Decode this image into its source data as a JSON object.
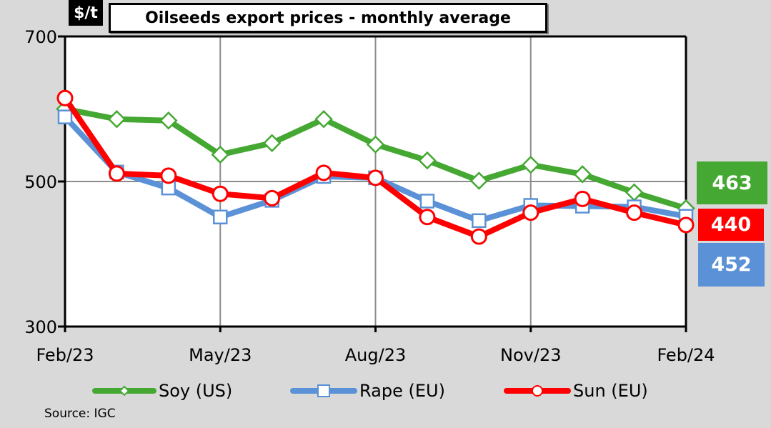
{
  "chart_data": {
    "type": "line",
    "title": "Oilseeds export prices - monthly average",
    "ylabel": "$/t",
    "xlabel": "",
    "ylim": [
      300,
      700
    ],
    "yticks": [
      300,
      500,
      700
    ],
    "ytick_labels": [
      "300",
      "500",
      "700"
    ],
    "x": [
      "Feb/23",
      "Mar/23",
      "Apr/23",
      "May/23",
      "Jun/23",
      "Jul/23",
      "Aug/23",
      "Sep/23",
      "Oct/23",
      "Nov/23",
      "Dec/23",
      "Jan/24",
      "Feb/24"
    ],
    "xtick_labels": [
      "Feb/23",
      "May/23",
      "Aug/23",
      "Nov/23",
      "Feb/24"
    ],
    "grid": true,
    "legend_position": "bottom",
    "series": [
      {
        "name": "Soy (US)",
        "color": "#44a832",
        "marker": "diamond",
        "values": [
          600,
          586,
          584,
          537,
          553,
          586,
          551,
          529,
          501,
          523,
          510,
          485,
          463
        ]
      },
      {
        "name": "Rape (EU)",
        "color": "#5b91d6",
        "marker": "square",
        "values": [
          589,
          513,
          491,
          451,
          474,
          507,
          505,
          473,
          446,
          467,
          466,
          465,
          452
        ]
      },
      {
        "name": "Sun (EU)",
        "color": "#ff0000",
        "marker": "circle",
        "values": [
          615,
          511,
          508,
          483,
          477,
          512,
          505,
          451,
          424,
          457,
          476,
          457,
          440
        ]
      }
    ],
    "latest_values": [
      {
        "series": "Soy (US)",
        "value": "463",
        "color": "#44a832"
      },
      {
        "series": "Sun (EU)",
        "value": "440",
        "color": "#ff0000"
      },
      {
        "series": "Rape (EU)",
        "value": "452",
        "color": "#5b91d6"
      }
    ],
    "source": "Source:  IGC"
  }
}
